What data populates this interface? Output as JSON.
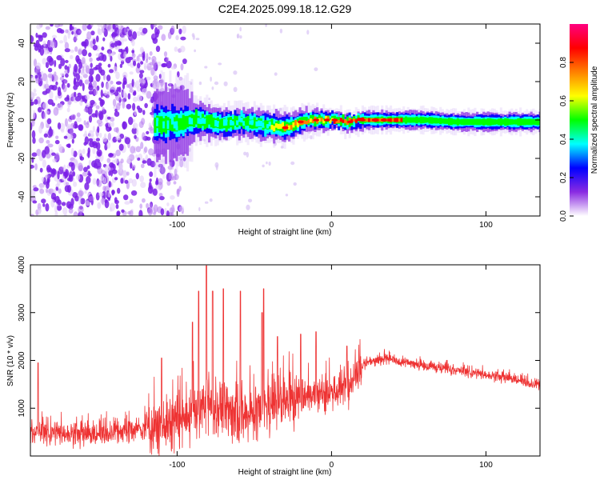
{
  "page_title": "C2E4.2025.099.18.12.G29",
  "chart_data": [
    {
      "type": "heatmap",
      "title": "C2E4.2025.099.18.12.G29",
      "xlabel": "Height of straight line (km)",
      "ylabel": "Frequency (Hz)",
      "xlim": [
        -195,
        135
      ],
      "ylim": [
        -50,
        50
      ],
      "x_ticks": [
        -100,
        0,
        100
      ],
      "y_ticks": [
        -40,
        -20,
        0,
        20,
        40
      ],
      "colorbar": {
        "label": "Normalized spectral amplitude",
        "range": [
          0.0,
          1.0
        ],
        "ticks": [
          0.0,
          0.2,
          0.4,
          0.6,
          0.8
        ],
        "tick_labels": [
          "0.0",
          "0.2",
          "0.4",
          "0.6",
          "0.8"
        ],
        "colormap": [
          "#ffffff",
          "#8a2be2",
          "#0000ff",
          "#00ffff",
          "#00ff00",
          "#ffff00",
          "#ff8000",
          "#ff0000",
          "#ff0080"
        ]
      },
      "features": {
        "noise_region_x": [
          -195,
          -105
        ],
        "signal_onset_x": -115,
        "ridge_center_hz": [
          [
            -112,
            -2
          ],
          [
            -100,
            -2
          ],
          [
            -90,
            0
          ],
          [
            -80,
            -1
          ],
          [
            -70,
            -2
          ],
          [
            -60,
            -1
          ],
          [
            -50,
            -2
          ],
          [
            -40,
            -3
          ],
          [
            -30,
            -4
          ],
          [
            -20,
            -1
          ],
          [
            -10,
            0
          ],
          [
            0,
            0
          ],
          [
            10,
            -1
          ],
          [
            20,
            0
          ],
          [
            40,
            0
          ],
          [
            60,
            0
          ],
          [
            80,
            -1
          ],
          [
            100,
            -1
          ],
          [
            120,
            -1
          ],
          [
            135,
            -1
          ]
        ],
        "ridge_halfwidth_hz": [
          [
            -112,
            5
          ],
          [
            -90,
            4
          ],
          [
            -60,
            3
          ],
          [
            -30,
            3
          ],
          [
            0,
            2
          ],
          [
            40,
            2
          ],
          [
            80,
            2
          ],
          [
            135,
            2
          ]
        ]
      }
    },
    {
      "type": "line",
      "xlabel": "Height of straight line (km)",
      "ylabel": "SNR (10 * v/v)",
      "xlim": [
        -195,
        135
      ],
      "ylim": [
        0,
        4000
      ],
      "x_ticks": [
        -100,
        0,
        100
      ],
      "y_ticks": [
        1000,
        2000,
        3000,
        4000
      ],
      "color": "#ee3333",
      "series": [
        {
          "x": [
            -195,
            -185,
            -175,
            -165,
            -155,
            -145,
            -135,
            -125,
            -115,
            -105,
            -95,
            -85,
            -80,
            -75,
            -65,
            -55,
            -45,
            -35,
            -25,
            -15,
            -5,
            5,
            10,
            15,
            20,
            25,
            30,
            35,
            40,
            50,
            60,
            70,
            80,
            90,
            100,
            110,
            120,
            130,
            135
          ],
          "y": [
            500,
            500,
            480,
            460,
            450,
            480,
            520,
            560,
            600,
            700,
            800,
            1000,
            1100,
            1050,
            1000,
            800,
            1000,
            1100,
            1200,
            1300,
            1350,
            1350,
            1500,
            1700,
            1900,
            2000,
            2000,
            2050,
            2000,
            1950,
            1900,
            1850,
            1800,
            1750,
            1700,
            1650,
            1600,
            1500,
            1480
          ]
        }
      ],
      "spike_peaks": [
        {
          "x": -190,
          "y": 1950
        },
        {
          "x": -110,
          "y": 2050
        },
        {
          "x": -90,
          "y": 2800
        },
        {
          "x": -86,
          "y": 3450
        },
        {
          "x": -81,
          "y": 3980
        },
        {
          "x": -77,
          "y": 3450
        },
        {
          "x": -70,
          "y": 3500
        },
        {
          "x": -59,
          "y": 3450
        },
        {
          "x": -45,
          "y": 3000
        },
        {
          "x": -44,
          "y": 3500
        },
        {
          "x": -35,
          "y": 2500
        },
        {
          "x": -20,
          "y": 2550
        },
        {
          "x": -10,
          "y": 2600
        },
        {
          "x": 10,
          "y": 2300
        }
      ]
    }
  ]
}
